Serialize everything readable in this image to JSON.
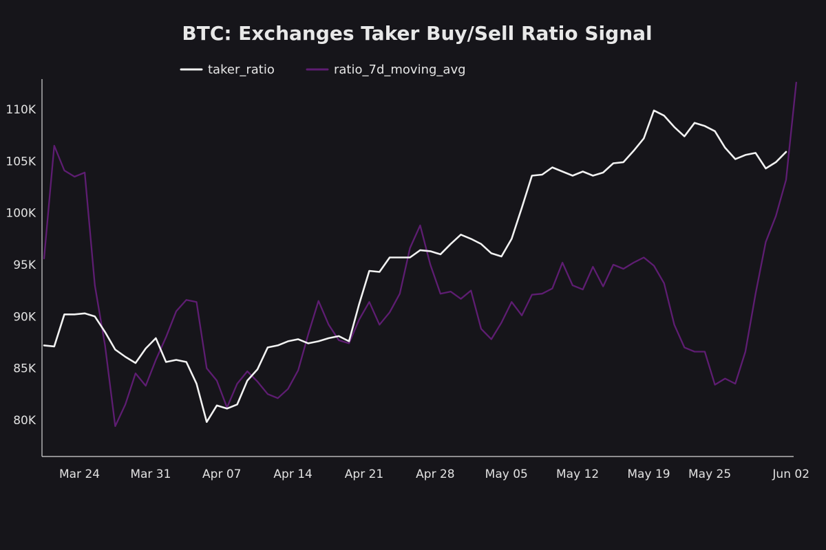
{
  "chart_data": {
    "type": "line",
    "title": "BTC: Exchanges Taker Buy/Sell Ratio Signal",
    "xlabel": "",
    "ylabel": "",
    "grid": false,
    "legend_position": "top",
    "x_start": "2025-03-22",
    "x_ticks": [
      {
        "label": "Mar 24",
        "date": "2025-03-24"
      },
      {
        "label": "Mar 31",
        "date": "2025-03-31"
      },
      {
        "label": "Apr 07",
        "date": "2025-04-07"
      },
      {
        "label": "Apr 14",
        "date": "2025-04-14"
      },
      {
        "label": "Apr 21",
        "date": "2025-04-21"
      },
      {
        "label": "Apr 28",
        "date": "2025-04-28"
      },
      {
        "label": "May 05",
        "date": "2025-05-05"
      },
      {
        "label": "May 12",
        "date": "2025-05-12"
      },
      {
        "label": "May 19",
        "date": "2025-05-19"
      },
      {
        "label": "May 25",
        "date": "2025-05-25"
      },
      {
        "label": "Jun 02",
        "date": "2025-06-02"
      }
    ],
    "y_ticks": [
      {
        "label": "80K",
        "value": 80000
      },
      {
        "label": "85K",
        "value": 85000
      },
      {
        "label": "90K",
        "value": 90000
      },
      {
        "label": "95K",
        "value": 95000
      },
      {
        "label": "100K",
        "value": 100000
      },
      {
        "label": "105K",
        "value": 105000
      },
      {
        "label": "110K",
        "value": 110000
      }
    ],
    "ylim": [
      77000,
      113000
    ],
    "xlim": [
      "2025-03-22",
      "2025-06-03"
    ],
    "series": [
      {
        "name": "taker_ratio",
        "color": "#f2f2f2",
        "points": [
          [
            "2025-03-22",
            87200
          ],
          [
            "2025-03-23",
            87100
          ],
          [
            "2025-03-24",
            90200
          ],
          [
            "2025-03-25",
            90200
          ],
          [
            "2025-03-26",
            90300
          ],
          [
            "2025-03-27",
            90000
          ],
          [
            "2025-03-28",
            88500
          ],
          [
            "2025-03-29",
            86800
          ],
          [
            "2025-03-30",
            86100
          ],
          [
            "2025-03-31",
            85500
          ],
          [
            "2025-04-01",
            86900
          ],
          [
            "2025-04-02",
            87900
          ],
          [
            "2025-04-03",
            85600
          ],
          [
            "2025-04-04",
            85800
          ],
          [
            "2025-04-05",
            85600
          ],
          [
            "2025-04-06",
            83500
          ],
          [
            "2025-04-07",
            79800
          ],
          [
            "2025-04-08",
            81400
          ],
          [
            "2025-04-09",
            81100
          ],
          [
            "2025-04-10",
            81500
          ],
          [
            "2025-04-11",
            83800
          ],
          [
            "2025-04-12",
            84900
          ],
          [
            "2025-04-13",
            87000
          ],
          [
            "2025-04-14",
            87200
          ],
          [
            "2025-04-15",
            87600
          ],
          [
            "2025-04-16",
            87800
          ],
          [
            "2025-04-17",
            87400
          ],
          [
            "2025-04-18",
            87600
          ],
          [
            "2025-04-19",
            87900
          ],
          [
            "2025-04-20",
            88100
          ],
          [
            "2025-04-21",
            87600
          ],
          [
            "2025-04-22",
            91200
          ],
          [
            "2025-04-23",
            94400
          ],
          [
            "2025-04-24",
            94300
          ],
          [
            "2025-04-25",
            95700
          ],
          [
            "2025-04-26",
            95700
          ],
          [
            "2025-04-27",
            95700
          ],
          [
            "2025-04-28",
            96400
          ],
          [
            "2025-04-29",
            96300
          ],
          [
            "2025-04-30",
            96000
          ],
          [
            "2025-05-01",
            97000
          ],
          [
            "2025-05-02",
            97900
          ],
          [
            "2025-05-03",
            97500
          ],
          [
            "2025-05-04",
            97000
          ],
          [
            "2025-05-05",
            96100
          ],
          [
            "2025-05-06",
            95800
          ],
          [
            "2025-05-07",
            97500
          ],
          [
            "2025-05-08",
            100500
          ],
          [
            "2025-05-09",
            103600
          ],
          [
            "2025-05-10",
            103700
          ],
          [
            "2025-05-11",
            104400
          ],
          [
            "2025-05-12",
            104000
          ],
          [
            "2025-05-13",
            103600
          ],
          [
            "2025-05-14",
            104000
          ],
          [
            "2025-05-15",
            103600
          ],
          [
            "2025-05-16",
            103900
          ],
          [
            "2025-05-17",
            104800
          ],
          [
            "2025-05-18",
            104900
          ],
          [
            "2025-05-19",
            106000
          ],
          [
            "2025-05-20",
            107200
          ],
          [
            "2025-05-21",
            109900
          ],
          [
            "2025-05-22",
            109400
          ],
          [
            "2025-05-23",
            108300
          ],
          [
            "2025-05-24",
            107400
          ],
          [
            "2025-05-25",
            108700
          ],
          [
            "2025-05-26",
            108400
          ],
          [
            "2025-05-27",
            107900
          ],
          [
            "2025-05-28",
            106300
          ],
          [
            "2025-05-29",
            105200
          ],
          [
            "2025-05-30",
            105600
          ],
          [
            "2025-05-31",
            105800
          ],
          [
            "2025-06-01",
            104300
          ],
          [
            "2025-06-02",
            104900
          ],
          [
            "2025-06-03",
            105900
          ]
        ]
      },
      {
        "name": "ratio_7d_moving_avg",
        "color": "#5e1d72",
        "points": [
          [
            "2025-03-22",
            95600
          ],
          [
            "2025-03-23",
            106500
          ],
          [
            "2025-03-24",
            104100
          ],
          [
            "2025-03-25",
            103500
          ],
          [
            "2025-03-26",
            103900
          ],
          [
            "2025-03-27",
            93000
          ],
          [
            "2025-03-28",
            87200
          ],
          [
            "2025-03-29",
            79400
          ],
          [
            "2025-03-30",
            81500
          ],
          [
            "2025-03-31",
            84500
          ],
          [
            "2025-04-01",
            83300
          ],
          [
            "2025-04-02",
            85800
          ],
          [
            "2025-04-03",
            88000
          ],
          [
            "2025-04-04",
            90500
          ],
          [
            "2025-04-05",
            91600
          ],
          [
            "2025-04-06",
            91400
          ],
          [
            "2025-04-07",
            85000
          ],
          [
            "2025-04-08",
            83800
          ],
          [
            "2025-04-09",
            81200
          ],
          [
            "2025-04-10",
            83500
          ],
          [
            "2025-04-11",
            84700
          ],
          [
            "2025-04-12",
            83700
          ],
          [
            "2025-04-13",
            82500
          ],
          [
            "2025-04-14",
            82100
          ],
          [
            "2025-04-15",
            83000
          ],
          [
            "2025-04-16",
            84800
          ],
          [
            "2025-04-17",
            88300
          ],
          [
            "2025-04-18",
            91500
          ],
          [
            "2025-04-19",
            89200
          ],
          [
            "2025-04-20",
            87700
          ],
          [
            "2025-04-21",
            87400
          ],
          [
            "2025-04-22",
            89700
          ],
          [
            "2025-04-23",
            91400
          ],
          [
            "2025-04-24",
            89200
          ],
          [
            "2025-04-25",
            90400
          ],
          [
            "2025-04-26",
            92200
          ],
          [
            "2025-04-27",
            96600
          ],
          [
            "2025-04-28",
            98800
          ],
          [
            "2025-04-29",
            95000
          ],
          [
            "2025-04-30",
            92200
          ],
          [
            "2025-05-01",
            92400
          ],
          [
            "2025-05-02",
            91700
          ],
          [
            "2025-05-03",
            92500
          ],
          [
            "2025-05-04",
            88800
          ],
          [
            "2025-05-05",
            87800
          ],
          [
            "2025-05-06",
            89400
          ],
          [
            "2025-05-07",
            91400
          ],
          [
            "2025-05-08",
            90100
          ],
          [
            "2025-05-09",
            92100
          ],
          [
            "2025-05-10",
            92200
          ],
          [
            "2025-05-11",
            92700
          ],
          [
            "2025-05-12",
            95200
          ],
          [
            "2025-05-13",
            93000
          ],
          [
            "2025-05-14",
            92600
          ],
          [
            "2025-05-15",
            94800
          ],
          [
            "2025-05-16",
            92900
          ],
          [
            "2025-05-17",
            95000
          ],
          [
            "2025-05-18",
            94600
          ],
          [
            "2025-05-19",
            95200
          ],
          [
            "2025-05-20",
            95700
          ],
          [
            "2025-05-21",
            94900
          ],
          [
            "2025-05-22",
            93200
          ],
          [
            "2025-05-23",
            89200
          ],
          [
            "2025-05-24",
            87000
          ],
          [
            "2025-05-25",
            86600
          ],
          [
            "2025-05-26",
            86600
          ],
          [
            "2025-05-27",
            83400
          ],
          [
            "2025-05-28",
            84000
          ],
          [
            "2025-05-29",
            83500
          ],
          [
            "2025-05-30",
            86600
          ],
          [
            "2025-05-31",
            92200
          ],
          [
            "2025-06-01",
            97200
          ],
          [
            "2025-06-02",
            99700
          ],
          [
            "2025-06-03",
            103200
          ],
          [
            "2025-06-04",
            112600
          ]
        ]
      }
    ]
  }
}
